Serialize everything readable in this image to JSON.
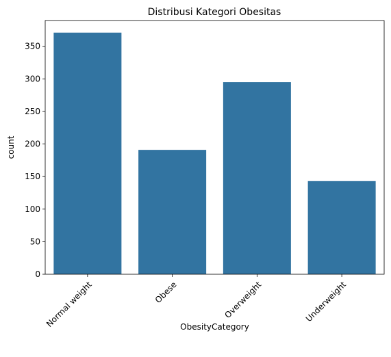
{
  "chart_data": {
    "type": "bar",
    "title": "Distribusi Kategori Obesitas",
    "xlabel": "ObesityCategory",
    "ylabel": "count",
    "categories": [
      "Normal weight",
      "Obese",
      "Overweight",
      "Underweight"
    ],
    "values": [
      371,
      191,
      295,
      143
    ],
    "ylim": [
      0,
      389.6
    ],
    "yticks": [
      0,
      50,
      100,
      150,
      200,
      250,
      300,
      350
    ],
    "ytick_labels": [
      "0",
      "50",
      "100",
      "150",
      "200",
      "250",
      "300",
      "350"
    ],
    "xtick_rotation_deg": 45,
    "bar_color": "#3274a1",
    "grid": false,
    "legend": "none"
  }
}
